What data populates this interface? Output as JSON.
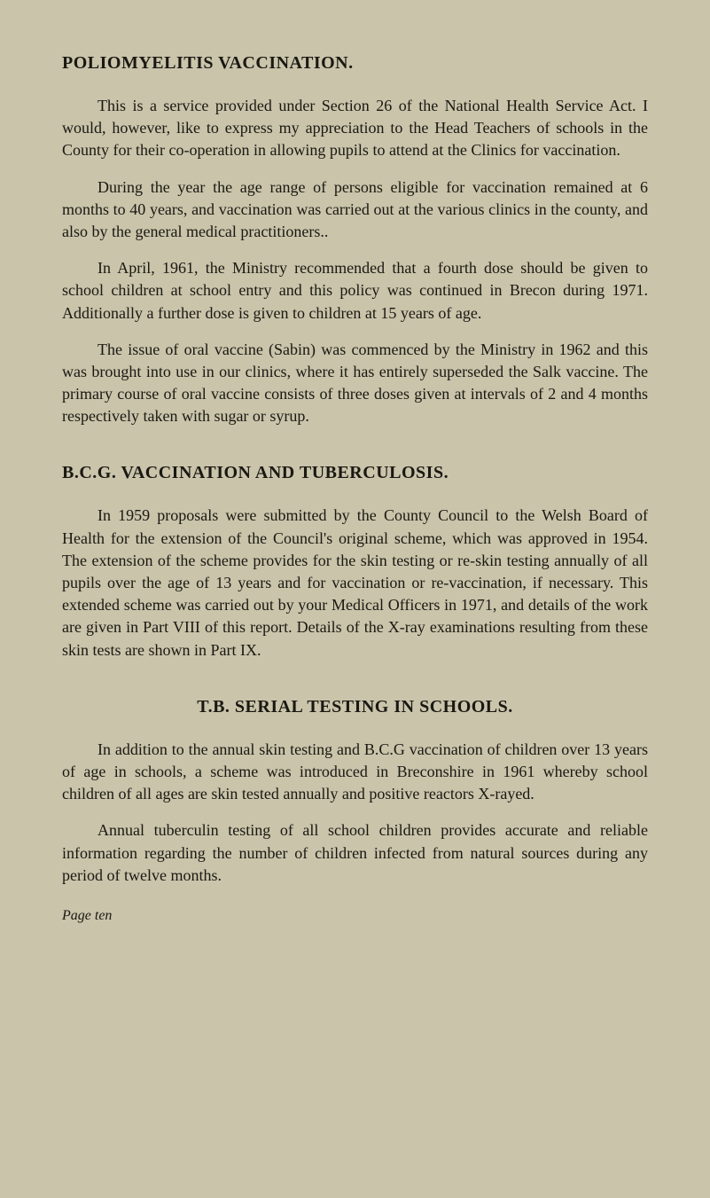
{
  "page": {
    "background_color": "#c9c4aa",
    "text_color": "#1a1812",
    "body_fontsize": 18,
    "heading_fontsize": 20,
    "footer_fontsize": 16,
    "font_family": "Georgia, Times New Roman, serif"
  },
  "section1": {
    "heading": "POLIOMYELITIS VACCINATION.",
    "p1": "This is a service provided under Section 26 of the National Health Service Act. I would, however, like to express my appreciation to the Head Teachers of schools in the County for their co-operation in allowing pupils to attend at the Clinics for vaccination.",
    "p2": "During the year the age range of persons eligible for vaccination remained at 6 months to 40 years, and vaccination was carried out at the various clinics in the county, and also by the general medical practitioners..",
    "p3": "In April, 1961, the Ministry recommended that a fourth dose should be given to school children at school entry and this policy was continued in Brecon during 1971. Additionally a further dose is given to children at 15 years of age.",
    "p4": "The issue of oral vaccine (Sabin) was commenced by the Ministry in 1962 and this was brought into use in our clinics, where it has entirely superseded the Salk vaccine. The primary course of oral vaccine consists of three doses given at intervals of 2 and 4 months respectively taken with sugar or syrup."
  },
  "section2": {
    "heading": "B.C.G. VACCINATION AND TUBERCULOSIS.",
    "p1": "In 1959 proposals were submitted by the County Council to the Welsh Board of Health for the extension of the Council's original scheme, which was approved in 1954. The extension of the scheme provides for the skin testing or re-skin testing annually of all pupils over the age of 13 years and for vaccination or re-vaccination, if necessary. This extended scheme was carried out by your Medical Officers in 1971, and details of the work are given in Part VIII of this report. Details of the X-ray examinations resulting from these skin tests are shown in Part IX."
  },
  "section3": {
    "heading": "T.B. SERIAL TESTING IN SCHOOLS.",
    "p1": "In addition to the annual skin testing and B.C.G vaccination of children over 13 years of age in schools, a scheme was introduced in Breconshire in 1961 whereby school children of all ages are skin tested annually and positive reactors X-rayed.",
    "p2": "Annual tuberculin testing of all school children provides accurate and reliable information regarding the number of children infected from natural sources during any period of twelve months."
  },
  "footer": {
    "label": "Page ten"
  }
}
